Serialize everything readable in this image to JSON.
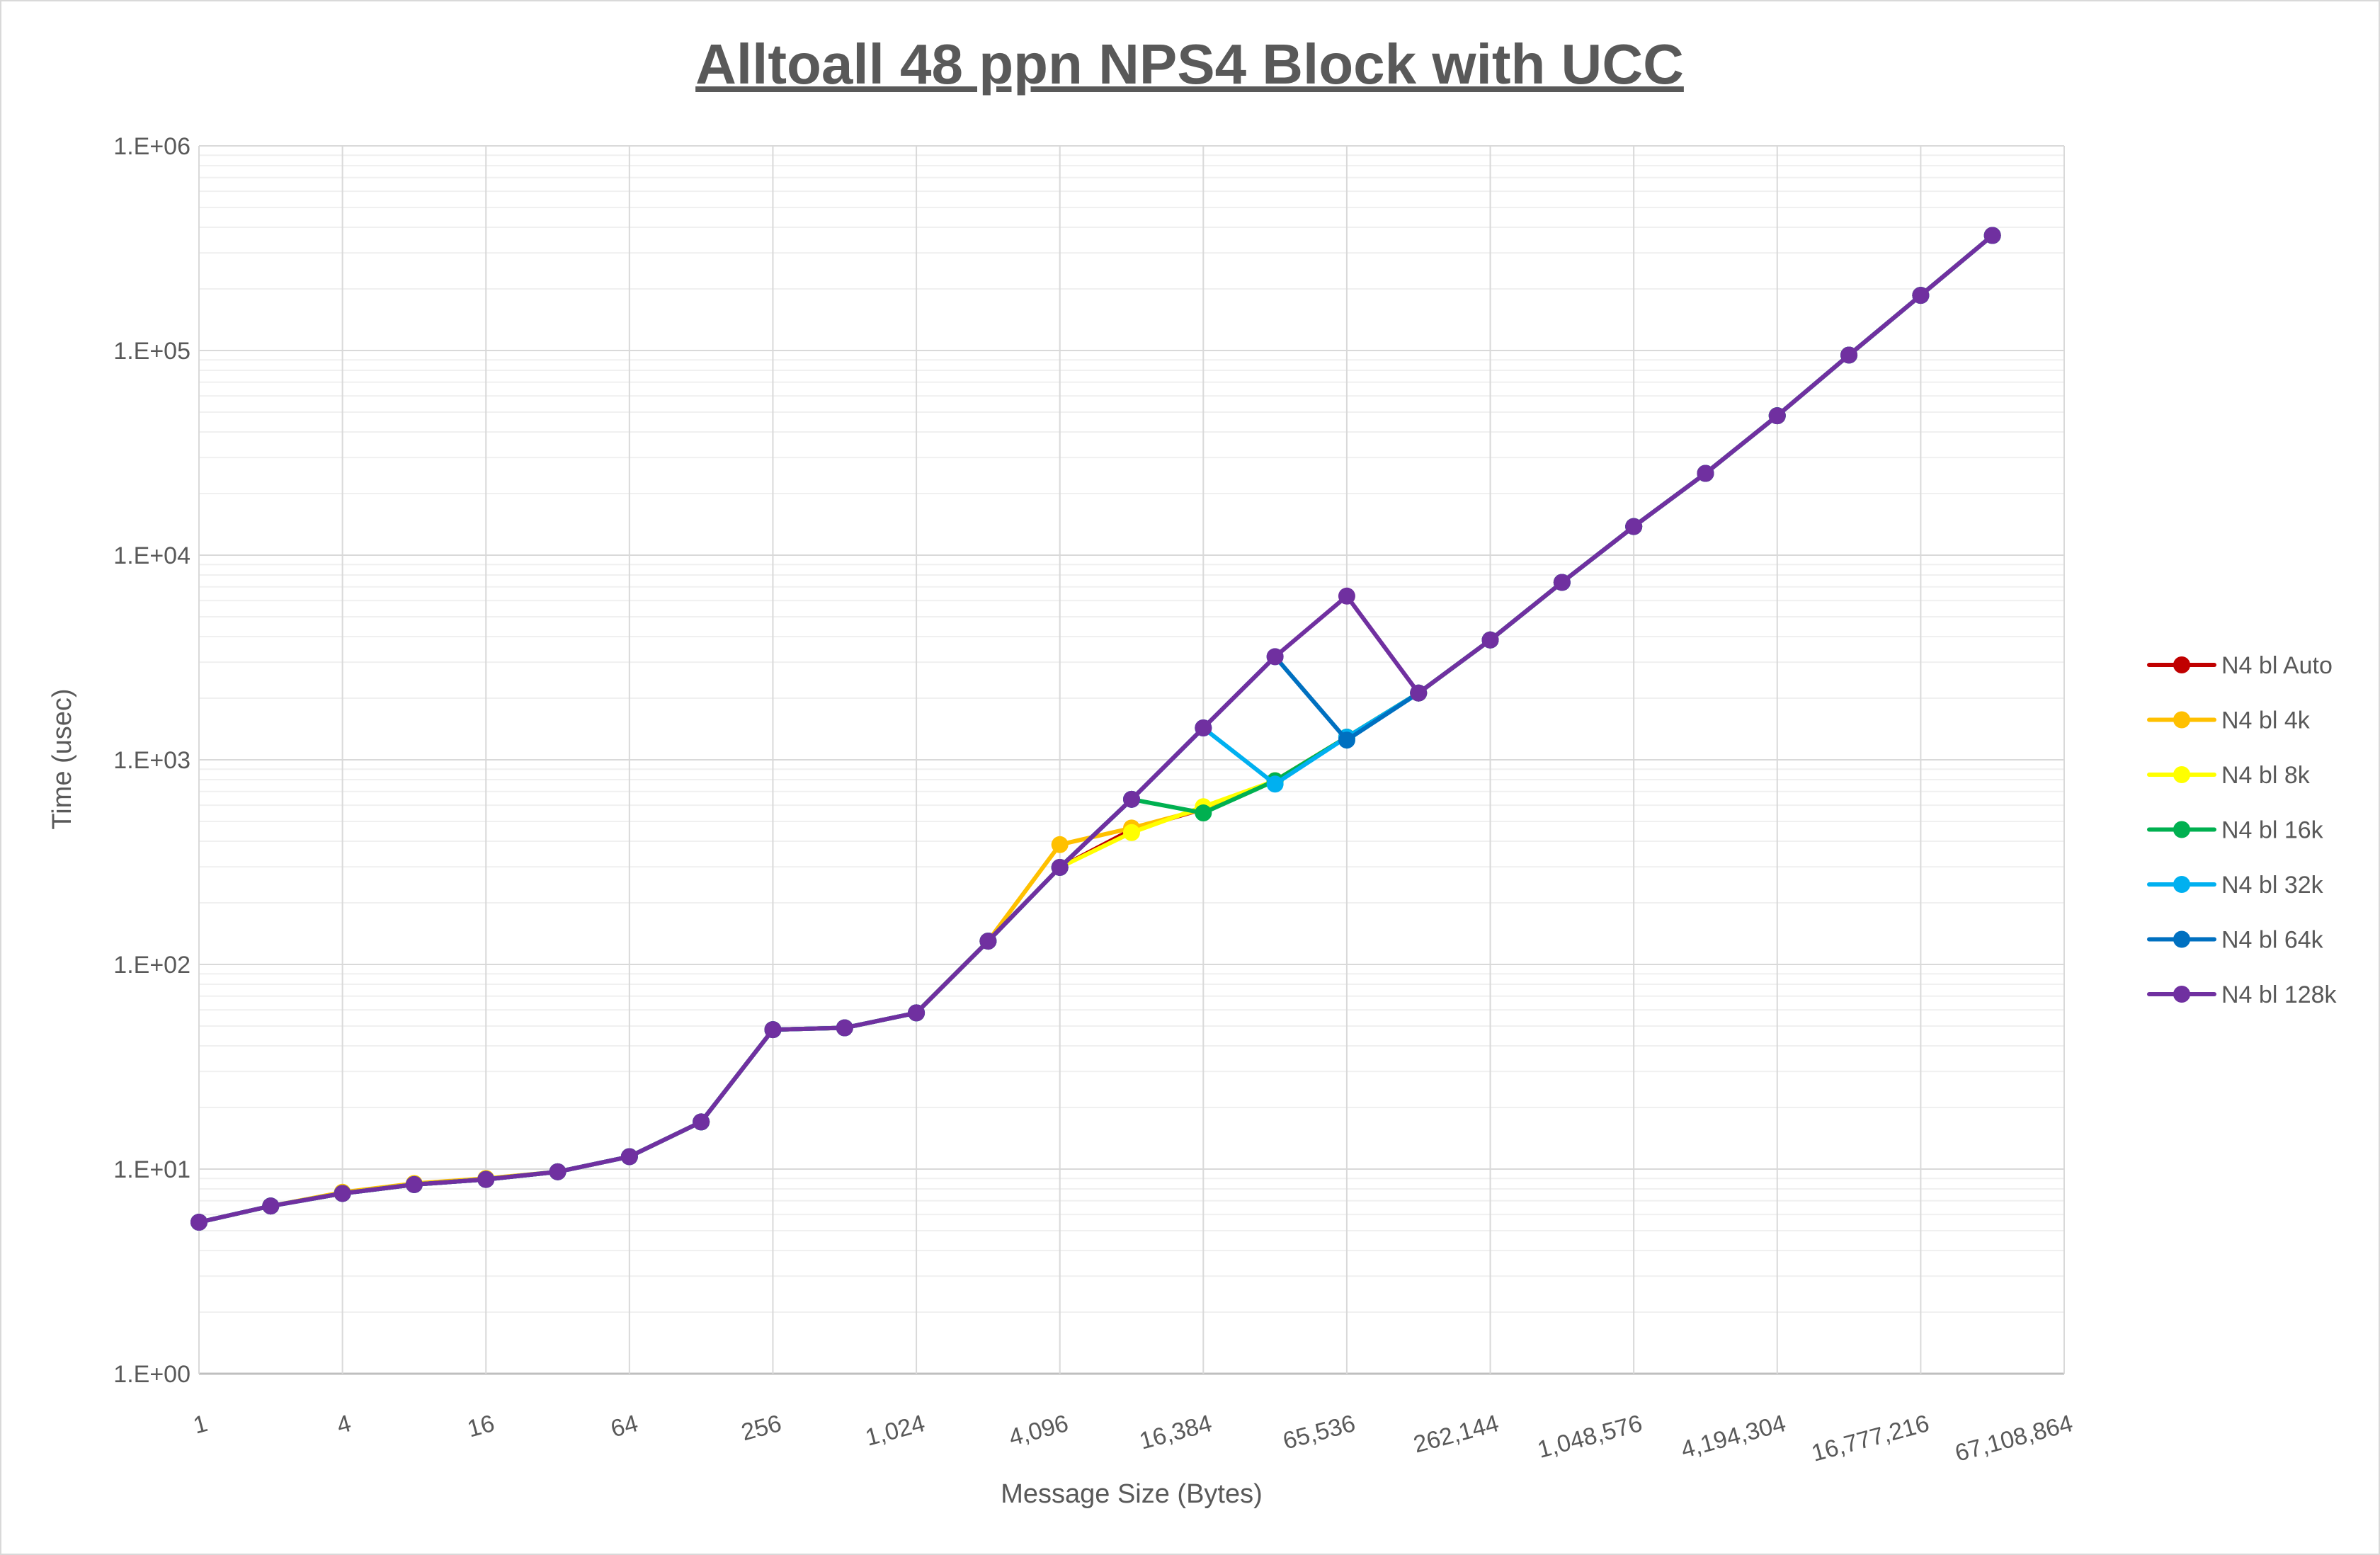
{
  "chart_data": {
    "type": "line",
    "title": "Alltoall 48 ppn NPS4 Block with UCC",
    "xlabel": "Message Size (Bytes)",
    "ylabel": "Time (usec)",
    "x_scale": "log2",
    "y_scale": "log10",
    "ylim": [
      1,
      1000000
    ],
    "xlim": [
      1,
      67108864
    ],
    "grid": true,
    "legend_position": "right",
    "y_tick_labels": [
      "1.E+00",
      "1.E+01",
      "1.E+02",
      "1.E+03",
      "1.E+04",
      "1.E+05",
      "1.E+06"
    ],
    "x_tick_labels": [
      "1",
      "4",
      "16",
      "64",
      "256",
      "1,024",
      "4,096",
      "16,384",
      "65,536",
      "262,144",
      "1,048,576",
      "4,194,304",
      "16,777,216",
      "67,108,864"
    ],
    "x": [
      1,
      2,
      4,
      8,
      16,
      32,
      64,
      128,
      256,
      512,
      1024,
      2048,
      4096,
      8192,
      16384,
      32768,
      65536,
      131072,
      262144,
      524288,
      1048576,
      2097152,
      4194304,
      8388608,
      16777216,
      33554432
    ],
    "series": [
      {
        "name": "N4 bl Auto",
        "color": "#C00000",
        "values": [
          5.5,
          6.6,
          7.6,
          8.4,
          8.9,
          9.7,
          11.5,
          17,
          48,
          49,
          58,
          130,
          298,
          455,
          575,
          790,
          1290,
          2120,
          3850,
          7360,
          13800,
          25100,
          48000,
          95000,
          186000,
          365000
        ]
      },
      {
        "name": "N4 bl 4k",
        "color": "#FFC000",
        "values": [
          5.5,
          6.6,
          7.7,
          8.5,
          9.0,
          9.7,
          11.5,
          17,
          48,
          49,
          58,
          130,
          385,
          464,
          575,
          790,
          1290,
          2120,
          3850,
          7360,
          13800,
          25100,
          48000,
          95000,
          186000,
          365000
        ]
      },
      {
        "name": "N4 bl 8k",
        "color": "#FFFF00",
        "values": [
          5.5,
          6.6,
          7.6,
          8.4,
          8.9,
          9.7,
          11.5,
          17,
          48,
          49,
          58,
          130,
          298,
          441,
          590,
          790,
          1290,
          2120,
          3850,
          7360,
          13800,
          25100,
          48000,
          95000,
          186000,
          365000
        ]
      },
      {
        "name": "N4 bl 16k",
        "color": "#00B050",
        "values": [
          5.5,
          6.6,
          7.6,
          8.4,
          8.9,
          9.7,
          11.5,
          17,
          48,
          49,
          58,
          130,
          298,
          641,
          550,
          790,
          1290,
          2120,
          3850,
          7360,
          13800,
          25100,
          48000,
          95000,
          186000,
          365000
        ]
      },
      {
        "name": "N4 bl 32k",
        "color": "#00B0F0",
        "values": [
          5.5,
          6.6,
          7.6,
          8.4,
          8.9,
          9.7,
          11.5,
          17,
          48,
          49,
          58,
          130,
          298,
          641,
          1431,
          761,
          1290,
          2120,
          3850,
          7360,
          13800,
          25100,
          48000,
          95000,
          186000,
          365000
        ]
      },
      {
        "name": "N4 bl 64k",
        "color": "#0070C0",
        "values": [
          5.5,
          6.6,
          7.6,
          8.4,
          8.9,
          9.7,
          11.5,
          17,
          48,
          49,
          58,
          130,
          298,
          641,
          1431,
          3190,
          1248,
          2120,
          3850,
          7360,
          13800,
          25100,
          48000,
          95000,
          186000,
          365000
        ]
      },
      {
        "name": "N4 bl 128k",
        "color": "#7030A0",
        "values": [
          5.5,
          6.6,
          7.6,
          8.4,
          8.9,
          9.7,
          11.5,
          17,
          48,
          49,
          58,
          130,
          298,
          641,
          1431,
          3190,
          6310,
          2120,
          3850,
          7360,
          13800,
          25100,
          48000,
          95000,
          186000,
          365000
        ]
      }
    ]
  }
}
